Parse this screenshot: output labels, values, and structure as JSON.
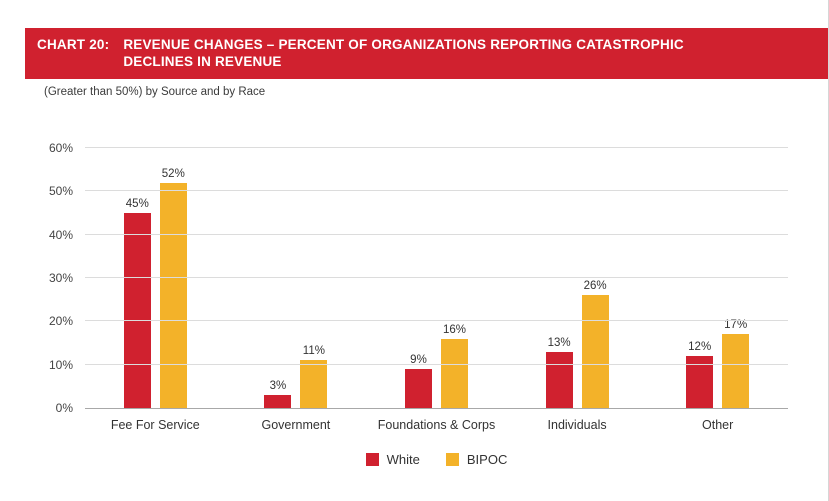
{
  "header": {
    "chart_label": "CHART 20:",
    "title_line1": "REVENUE CHANGES – PERCENT OF ORGANIZATIONS REPORTING CATASTROPHIC",
    "title_line2": "DECLINES IN REVENUE",
    "banner_color": "#d0212f"
  },
  "subtitle": "(Greater than 50%) by Source and by Race",
  "chart_data": {
    "type": "bar",
    "categories": [
      "Fee For Service",
      "Government",
      "Foundations & Corps",
      "Individuals",
      "Other"
    ],
    "series": [
      {
        "name": "White",
        "color": "#d0212f",
        "values": [
          45,
          3,
          9,
          13,
          12
        ]
      },
      {
        "name": "BIPOC",
        "color": "#f3b229",
        "values": [
          52,
          11,
          16,
          26,
          17
        ]
      }
    ],
    "value_labels": [
      [
        "45%",
        "3%",
        "9%",
        "13%",
        "12%"
      ],
      [
        "52%",
        "11%",
        "16%",
        "26%",
        "17%"
      ]
    ],
    "xlabel": "",
    "ylabel": "",
    "ylim": [
      0,
      60
    ],
    "ytick_step": 10,
    "ytick_labels": [
      "0%",
      "10%",
      "20%",
      "30%",
      "40%",
      "50%",
      "60%"
    ],
    "grid": true,
    "legend_position": "bottom"
  }
}
